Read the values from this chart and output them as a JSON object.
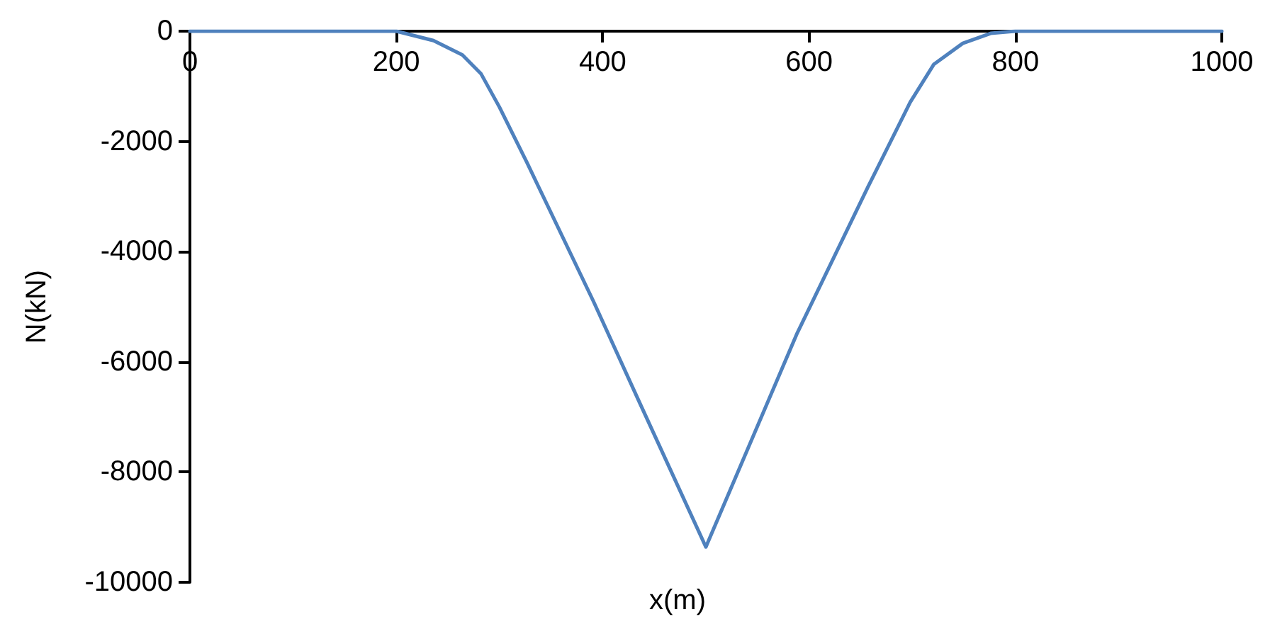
{
  "chart_data": {
    "type": "line",
    "xlabel": "x(m)",
    "ylabel": "N(kN)",
    "xlim": [
      0,
      1000
    ],
    "xticks": [
      0,
      200,
      400,
      600,
      800,
      1000
    ],
    "ylim": [
      -10000,
      0
    ],
    "yticks": [
      -10000,
      -8000,
      -6000,
      -4000,
      -2000,
      0
    ],
    "grid": false,
    "marker": "none",
    "line_style": "solid",
    "series": [
      {
        "color": "#4f81bd",
        "x": [
          0,
          100,
          200,
          236,
          264,
          282,
          300,
          327,
          391,
          436,
          500,
          588,
          657,
          698,
          721,
          749,
          776,
          800,
          900,
          1000
        ],
        "values": [
          0,
          0,
          0,
          -170,
          -430,
          -770,
          -1380,
          -2400,
          -4900,
          -6750,
          -9360,
          -5500,
          -2830,
          -1290,
          -600,
          -220,
          -40,
          0,
          0,
          0
        ]
      }
    ]
  }
}
